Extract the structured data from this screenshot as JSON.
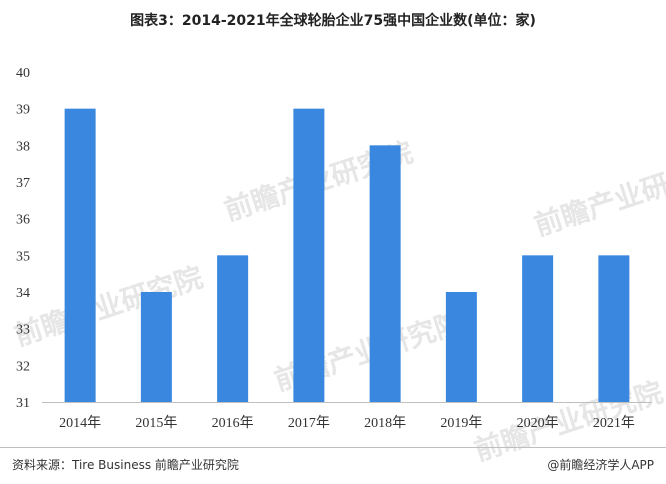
{
  "title": "图表3：2014-2021年全球轮胎企业75强中国企业数(单位：家)",
  "watermark": "前瞻产业研究院",
  "footer": {
    "source": "资料来源：Tire Business 前瞻产业研究院",
    "brand": "@前瞻经济学人APP"
  },
  "colors": {
    "bar": "#3a87e0",
    "axis": "#bfbfbf"
  },
  "chart_data": {
    "type": "bar",
    "title": "图表3：2014-2021年全球轮胎企业75强中国企业数(单位：家)",
    "unit": "家",
    "categories": [
      "2014年",
      "2015年",
      "2016年",
      "2017年",
      "2018年",
      "2019年",
      "2020年",
      "2021年"
    ],
    "values": [
      39,
      34,
      35,
      39,
      38,
      34,
      35,
      35
    ],
    "ylim": [
      31,
      40
    ],
    "yticks": [
      31,
      32,
      33,
      34,
      35,
      36,
      37,
      38,
      39,
      40
    ],
    "grid": false,
    "legend": "none"
  }
}
